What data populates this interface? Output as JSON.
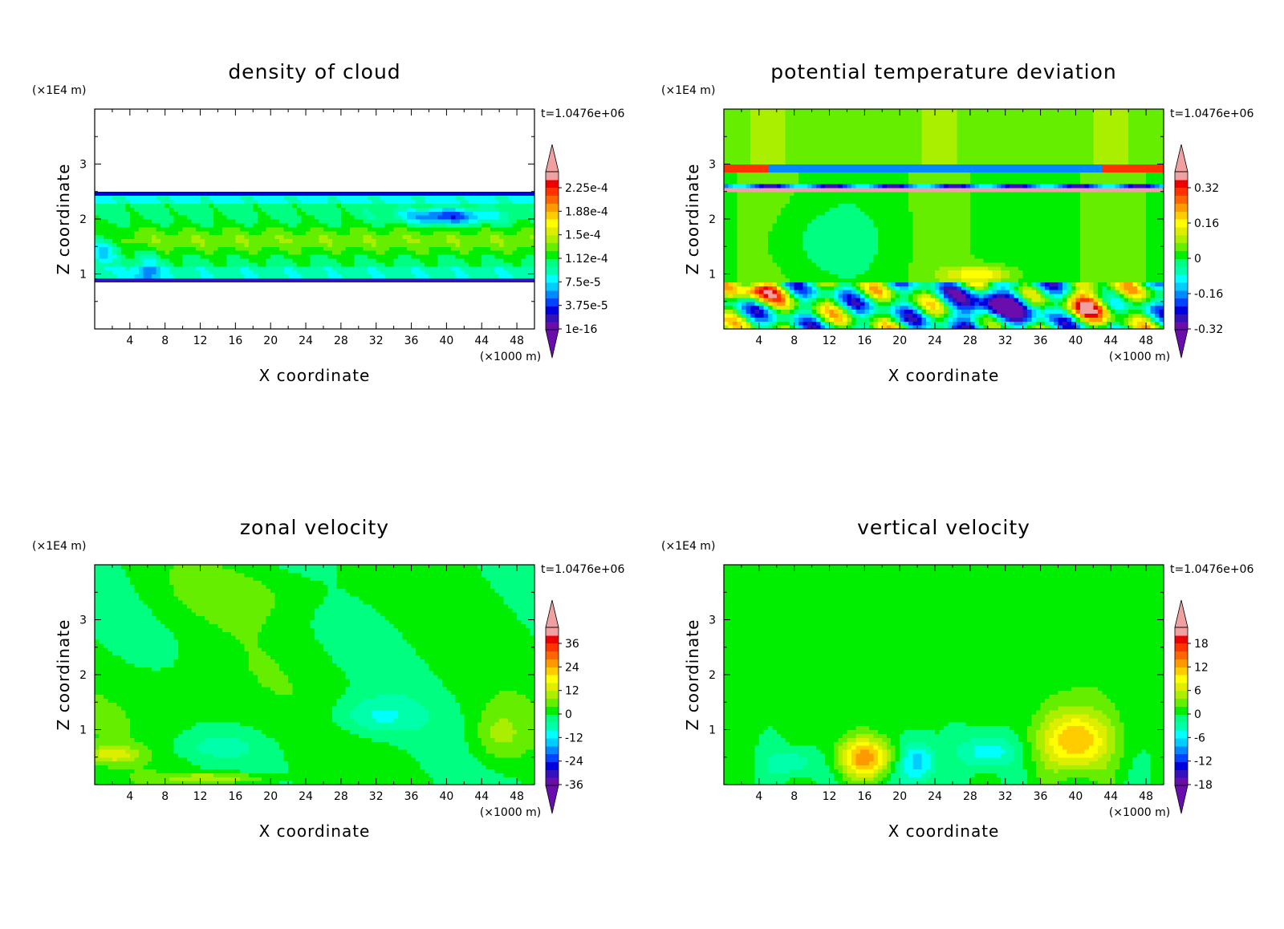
{
  "chart_data": [
    {
      "type": "heatmap",
      "title": "density of cloud",
      "xlabel": "X coordinate",
      "ylabel": "Z coordinate",
      "x_unit": "(×1000 m)",
      "y_unit": "(×1E4 m)",
      "timestamp": "t=1.0476e+06",
      "xlim": [
        0,
        50
      ],
      "ylim": [
        0,
        4
      ],
      "x_ticks": [
        "4",
        "8",
        "12",
        "16",
        "20",
        "24",
        "28",
        "32",
        "36",
        "40",
        "44",
        "48"
      ],
      "y_ticks": [
        "1",
        "2",
        "3"
      ],
      "colorbar_labels": [
        "2.25e-4",
        "1.88e-4",
        "1.5e-4",
        "1.12e-4",
        "7.5e-5",
        "3.75e-5",
        "1e-16"
      ],
      "field": "cloud",
      "background": "#ffffff"
    },
    {
      "type": "heatmap",
      "title": "potential temperature deviation",
      "xlabel": "X coordinate",
      "ylabel": "Z coordinate",
      "x_unit": "(×1000 m)",
      "y_unit": "(×1E4 m)",
      "timestamp": "t=1.0476e+06",
      "xlim": [
        0,
        50
      ],
      "ylim": [
        0,
        4
      ],
      "x_ticks": [
        "4",
        "8",
        "12",
        "16",
        "20",
        "24",
        "28",
        "32",
        "36",
        "40",
        "44",
        "48"
      ],
      "y_ticks": [
        "1",
        "2",
        "3"
      ],
      "colorbar_labels": [
        "0.32",
        "0.16",
        "0",
        "-0.16",
        "-0.32"
      ],
      "field": "theta",
      "background": "#00ff80"
    },
    {
      "type": "heatmap",
      "title": "zonal velocity",
      "xlabel": "X coordinate",
      "ylabel": "Z coordinate",
      "x_unit": "(×1000 m)",
      "y_unit": "(×1E4 m)",
      "timestamp": "t=1.0476e+06",
      "xlim": [
        0,
        50
      ],
      "ylim": [
        0,
        4
      ],
      "x_ticks": [
        "4",
        "8",
        "12",
        "16",
        "20",
        "24",
        "28",
        "32",
        "36",
        "40",
        "44",
        "48"
      ],
      "y_ticks": [
        "1",
        "2",
        "3"
      ],
      "colorbar_labels": [
        "36",
        "24",
        "12",
        "0",
        "-12",
        "-24",
        "-36"
      ],
      "field": "u",
      "background": "#00ff80"
    },
    {
      "type": "heatmap",
      "title": "vertical velocity",
      "xlabel": "X coordinate",
      "ylabel": "Z coordinate",
      "x_unit": "(×1000 m)",
      "y_unit": "(×1E4 m)",
      "timestamp": "t=1.0476e+06",
      "xlim": [
        0,
        50
      ],
      "ylim": [
        0,
        4
      ],
      "x_ticks": [
        "4",
        "8",
        "12",
        "16",
        "20",
        "24",
        "28",
        "32",
        "36",
        "40",
        "44",
        "48"
      ],
      "y_ticks": [
        "1",
        "2",
        "3"
      ],
      "colorbar_labels": [
        "18",
        "12",
        "6",
        "0",
        "-6",
        "-12",
        "-18"
      ],
      "field": "w",
      "background": "#00ff80"
    }
  ],
  "colormap": [
    "#6a0dad",
    "#3311bb",
    "#0000dd",
    "#0044ff",
    "#0088ff",
    "#00ccff",
    "#00ffff",
    "#00ffaa",
    "#00ff80",
    "#00ee00",
    "#66ee00",
    "#aaee00",
    "#ddee00",
    "#ffff00",
    "#ffcc00",
    "#ff9900",
    "#ff6600",
    "#ff3300",
    "#ee0000",
    "#f0a0a0"
  ]
}
